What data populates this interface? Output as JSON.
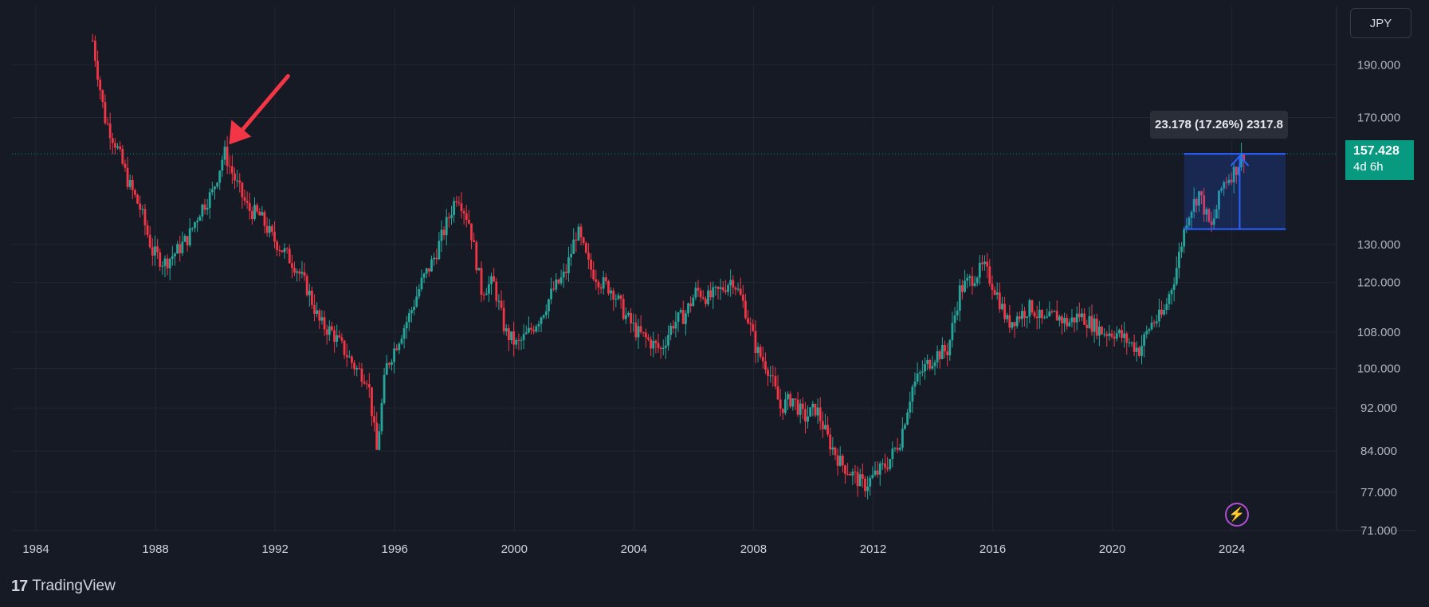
{
  "app": {
    "brand": "TradingView",
    "currency": "JPY"
  },
  "price_axis": {
    "labels": [
      "190.000",
      "170.000",
      "157.428",
      "130.000",
      "120.000",
      "108.000",
      "100.000",
      "92.000",
      "84.000",
      "77.000",
      "71.000"
    ]
  },
  "time_axis": {
    "labels": [
      "1984",
      "1988",
      "1992",
      "1996",
      "2000",
      "2004",
      "2008",
      "2012",
      "2016",
      "2020",
      "2024"
    ]
  },
  "last_price": {
    "value": "157.428",
    "countdown": "4d 6h"
  },
  "measure": {
    "label": "23.178 (17.26%) 2317.8",
    "from": 134.25,
    "to": 157.428
  },
  "colors": {
    "background": "#161a25",
    "grid": "#232734",
    "up": "#26a69a",
    "down": "#f23645",
    "last_price": "#089981",
    "measure_fill": "#2962ff",
    "arrow": "#f23645"
  },
  "chart_data": {
    "type": "candlestick",
    "title": "",
    "xlabel": "",
    "ylabel": "",
    "scale": "log",
    "xlim": [
      1983.2,
      2027.5
    ],
    "ylim": [
      71,
      215
    ],
    "grid": true,
    "annotations": [
      {
        "type": "arrow",
        "target_x": 1990.3,
        "target_y": 160
      },
      {
        "type": "price_range",
        "x_start": 2022.4,
        "x_end": 2025.8,
        "y_low": 134.25,
        "y_high": 157.428,
        "label": "23.178 (17.26%) 2317.8"
      },
      {
        "type": "horizontal_line",
        "y": 157.428,
        "style": "dotted"
      }
    ],
    "x": [
      1985.9,
      1986.3,
      1986.7,
      1987.1,
      1987.5,
      1987.9,
      1988.3,
      1988.7,
      1989.1,
      1989.5,
      1989.9,
      1990.3,
      1990.7,
      1991.1,
      1991.5,
      1991.9,
      1992.3,
      1992.7,
      1993.1,
      1993.5,
      1993.9,
      1994.3,
      1994.7,
      1995.1,
      1995.4,
      1995.7,
      1996.1,
      1996.5,
      1996.9,
      1997.3,
      1997.7,
      1998.1,
      1998.5,
      1998.9,
      1999.3,
      1999.7,
      2000.1,
      2000.5,
      2000.9,
      2001.3,
      2001.7,
      2002.1,
      2002.5,
      2002.9,
      2003.3,
      2003.7,
      2004.1,
      2004.5,
      2004.9,
      2005.3,
      2005.7,
      2006.1,
      2006.5,
      2006.9,
      2007.3,
      2007.7,
      2008.1,
      2008.5,
      2008.9,
      2009.3,
      2009.7,
      2010.1,
      2010.5,
      2010.9,
      2011.3,
      2011.7,
      2012.1,
      2012.5,
      2012.9,
      2013.3,
      2013.7,
      2014.1,
      2014.5,
      2014.9,
      2015.3,
      2015.7,
      2016.1,
      2016.5,
      2016.9,
      2017.3,
      2017.7,
      2018.1,
      2018.5,
      2018.9,
      2019.3,
      2019.7,
      2020.1,
      2020.5,
      2020.9,
      2021.3,
      2021.7,
      2022.1,
      2022.5,
      2022.9,
      2023.3,
      2023.7,
      2024.1,
      2024.4
    ],
    "series": [
      {
        "name": "",
        "values": [
          200,
          170,
          160,
          148,
          140,
          128,
          125,
          128,
          132,
          140,
          145,
          158,
          148,
          140,
          138,
          132,
          128,
          124,
          118,
          110,
          108,
          104,
          100,
          98,
          84,
          100,
          106,
          112,
          120,
          126,
          135,
          145,
          136,
          118,
          120,
          108,
          105,
          108,
          112,
          118,
          122,
          134,
          124,
          120,
          118,
          112,
          108,
          106,
          104,
          110,
          112,
          118,
          116,
          118,
          121,
          114,
          104,
          100,
          92,
          94,
          90,
          92,
          86,
          82,
          80,
          78,
          80,
          82,
          86,
          96,
          100,
          103,
          104,
          118,
          121,
          124,
          118,
          110,
          112,
          114,
          110,
          112,
          110,
          112,
          110,
          108,
          108,
          106,
          104,
          110,
          112,
          122,
          138,
          145,
          134,
          148,
          152,
          157.4
        ]
      }
    ]
  }
}
